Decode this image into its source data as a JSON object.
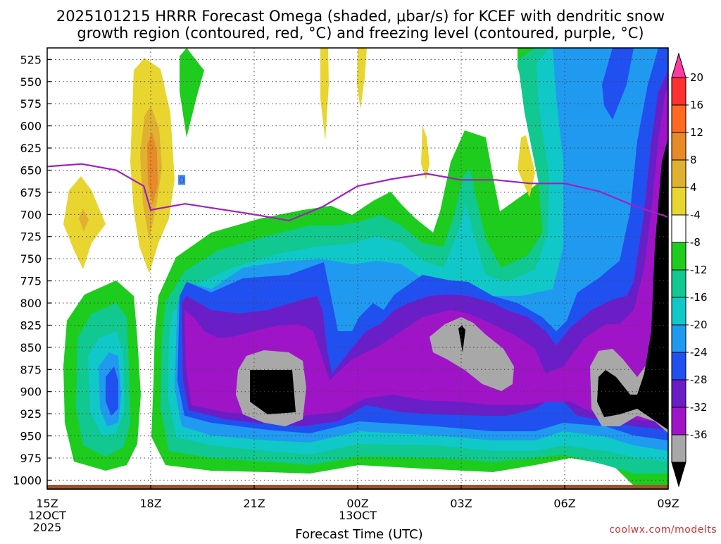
{
  "chart_data": {
    "type": "heatmap",
    "title_line1": "2025101215 HRRR Forecast Omega (shaded, μbar/s) for KCEF with dendritic snow",
    "title_line2": "growth region (contoured, red, °C) and freezing level (contoured, purple, °C)",
    "xlabel": "Forecast Time (UTC)",
    "credit": "coolwx.com/modelts",
    "x_range_hours": [
      0,
      18
    ],
    "y_range_mb": [
      512,
      1010
    ],
    "x_ticks": [
      {
        "hour": 0,
        "label": "15Z",
        "sub1": "12OCT",
        "sub2": "2025"
      },
      {
        "hour": 3,
        "label": "18Z",
        "sub1": "",
        "sub2": ""
      },
      {
        "hour": 6,
        "label": "21Z",
        "sub1": "",
        "sub2": ""
      },
      {
        "hour": 9,
        "label": "00Z",
        "sub1": "13OCT",
        "sub2": ""
      },
      {
        "hour": 12,
        "label": "03Z",
        "sub1": "",
        "sub2": ""
      },
      {
        "hour": 15,
        "label": "06Z",
        "sub1": "",
        "sub2": ""
      },
      {
        "hour": 18,
        "label": "09Z",
        "sub1": "",
        "sub2": ""
      }
    ],
    "y_ticks": [
      525,
      550,
      575,
      600,
      625,
      650,
      675,
      700,
      725,
      750,
      775,
      800,
      825,
      850,
      875,
      900,
      925,
      950,
      975,
      1000
    ],
    "colorbar_labels": [
      "20",
      "16",
      "12",
      "8",
      "4",
      "-4",
      "-8",
      "-12",
      "-16",
      "-20",
      "-24",
      "-28",
      "-32",
      "-36"
    ],
    "colorbar_colors": [
      "#ff3aa0",
      "#ff3030",
      "#ff6a20",
      "#e88a28",
      "#e0b030",
      "#e8d530",
      "#ffffff",
      "#1ecc1e",
      "#10c890",
      "#10c8c8",
      "#209af0",
      "#2050f0",
      "#6a1ec8",
      "#a014c8",
      "#a8a8a8",
      "#000000"
    ],
    "omega_levels": [
      -36,
      -32,
      -28,
      -24,
      -20,
      -16,
      -12,
      -8,
      -4,
      4,
      8,
      12,
      16,
      20
    ],
    "freezing_level": {
      "color": "#a020c0",
      "label": "0",
      "label_at": {
        "hour": 3.9,
        "mb": 661
      },
      "points": [
        {
          "hour": 0,
          "mb": 646
        },
        {
          "hour": 1,
          "mb": 643
        },
        {
          "hour": 2,
          "mb": 650
        },
        {
          "hour": 2.8,
          "mb": 668
        },
        {
          "hour": 3,
          "mb": 695
        },
        {
          "hour": 4,
          "mb": 688
        },
        {
          "hour": 5,
          "mb": 694
        },
        {
          "hour": 6,
          "mb": 700
        },
        {
          "hour": 7,
          "mb": 707
        },
        {
          "hour": 8,
          "mb": 691
        },
        {
          "hour": 9,
          "mb": 668
        },
        {
          "hour": 10,
          "mb": 660
        },
        {
          "hour": 11,
          "mb": 654
        },
        {
          "hour": 12,
          "mb": 661
        },
        {
          "hour": 13,
          "mb": 661
        },
        {
          "hour": 14,
          "mb": 665
        },
        {
          "hour": 15,
          "mb": 665
        },
        {
          "hour": 16,
          "mb": 674
        },
        {
          "hour": 17,
          "mb": 690
        },
        {
          "hour": 18,
          "mb": 703
        }
      ]
    },
    "ground_band_color": "#a0522d"
  }
}
